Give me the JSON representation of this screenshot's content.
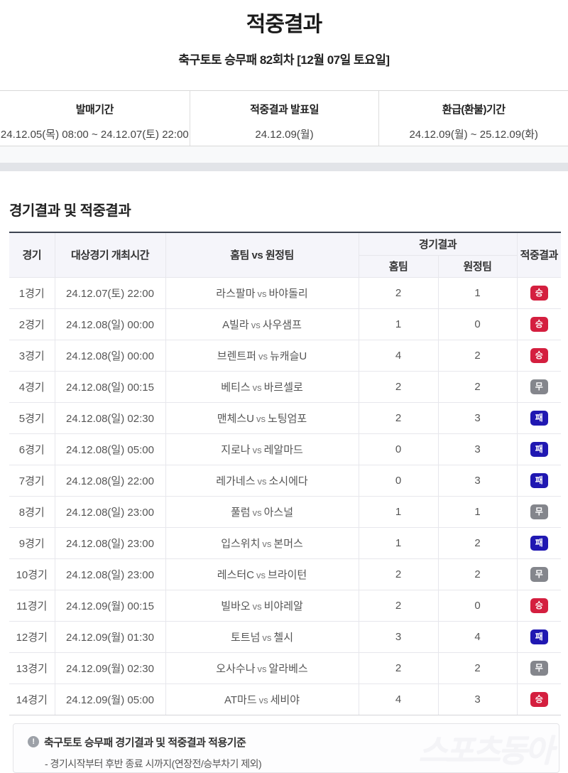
{
  "page": {
    "title": "적중결과",
    "subtitle": "축구토토 승무패 82회차 [12월 07일 토요일]"
  },
  "info_bar": {
    "items": [
      {
        "label": "발매기간",
        "value": "24.12.05(목) 08:00 ~ 24.12.07(토) 22:00"
      },
      {
        "label": "적중결과 발표일",
        "value": "24.12.09(월)"
      },
      {
        "label": "환급(환불)기간",
        "value": "24.12.09(월) ~ 25.12.09(화)"
      }
    ]
  },
  "section": {
    "title": "경기결과 및 적중결과"
  },
  "table": {
    "headers": {
      "match": "경기",
      "datetime": "대상경기 개최시간",
      "teams": "홈팀  vs  원정팀",
      "result_group": "경기결과",
      "home": "홈팀",
      "away": "원정팀",
      "outcome": "적중결과"
    },
    "vs_label": "vs",
    "rows": [
      {
        "match": "1경기",
        "datetime": "24.12.07(토) 22:00",
        "home_team": "라스팔마",
        "away_team": "바야돌리",
        "home_score": "2",
        "away_score": "1",
        "outcome": "승",
        "outcome_type": "win"
      },
      {
        "match": "2경기",
        "datetime": "24.12.08(일) 00:00",
        "home_team": "A빌라",
        "away_team": "사우샘프",
        "home_score": "1",
        "away_score": "0",
        "outcome": "승",
        "outcome_type": "win"
      },
      {
        "match": "3경기",
        "datetime": "24.12.08(일) 00:00",
        "home_team": "브렌트퍼",
        "away_team": "뉴캐슬U",
        "home_score": "4",
        "away_score": "2",
        "outcome": "승",
        "outcome_type": "win"
      },
      {
        "match": "4경기",
        "datetime": "24.12.08(일) 00:15",
        "home_team": "베티스",
        "away_team": "바르셀로",
        "home_score": "2",
        "away_score": "2",
        "outcome": "무",
        "outcome_type": "draw"
      },
      {
        "match": "5경기",
        "datetime": "24.12.08(일) 02:30",
        "home_team": "맨체스U",
        "away_team": "노팅엄포",
        "home_score": "2",
        "away_score": "3",
        "outcome": "패",
        "outcome_type": "lose"
      },
      {
        "match": "6경기",
        "datetime": "24.12.08(일) 05:00",
        "home_team": "지로나",
        "away_team": "레알마드",
        "home_score": "0",
        "away_score": "3",
        "outcome": "패",
        "outcome_type": "lose"
      },
      {
        "match": "7경기",
        "datetime": "24.12.08(일) 22:00",
        "home_team": "레가네스",
        "away_team": "소시에다",
        "home_score": "0",
        "away_score": "3",
        "outcome": "패",
        "outcome_type": "lose"
      },
      {
        "match": "8경기",
        "datetime": "24.12.08(일) 23:00",
        "home_team": "풀럼",
        "away_team": "아스널",
        "home_score": "1",
        "away_score": "1",
        "outcome": "무",
        "outcome_type": "draw"
      },
      {
        "match": "9경기",
        "datetime": "24.12.08(일) 23:00",
        "home_team": "입스위치",
        "away_team": "본머스",
        "home_score": "1",
        "away_score": "2",
        "outcome": "패",
        "outcome_type": "lose"
      },
      {
        "match": "10경기",
        "datetime": "24.12.08(일) 23:00",
        "home_team": "레스터C",
        "away_team": "브라이턴",
        "home_score": "2",
        "away_score": "2",
        "outcome": "무",
        "outcome_type": "draw"
      },
      {
        "match": "11경기",
        "datetime": "24.12.09(월) 00:15",
        "home_team": "빌바오",
        "away_team": "비야레알",
        "home_score": "2",
        "away_score": "0",
        "outcome": "승",
        "outcome_type": "win"
      },
      {
        "match": "12경기",
        "datetime": "24.12.09(월) 01:30",
        "home_team": "토트넘",
        "away_team": "첼시",
        "home_score": "3",
        "away_score": "4",
        "outcome": "패",
        "outcome_type": "lose"
      },
      {
        "match": "13경기",
        "datetime": "24.12.09(월) 02:30",
        "home_team": "오사수나",
        "away_team": "알라베스",
        "home_score": "2",
        "away_score": "2",
        "outcome": "무",
        "outcome_type": "draw"
      },
      {
        "match": "14경기",
        "datetime": "24.12.09(월) 05:00",
        "home_team": "AT마드",
        "away_team": "세비야",
        "home_score": "4",
        "away_score": "3",
        "outcome": "승",
        "outcome_type": "win"
      }
    ]
  },
  "outcome_colors": {
    "win": "#d41f3f",
    "draw": "#84868c",
    "lose": "#2018b2"
  },
  "footnote": {
    "icon_glyph": "!",
    "title": "축구토토 승무패 경기결과 및 적중결과 적용기준",
    "line": "- 경기시작부터 후반 종료 시까지(연장전/승부차기 제외)"
  },
  "watermark": "스포츠동아"
}
